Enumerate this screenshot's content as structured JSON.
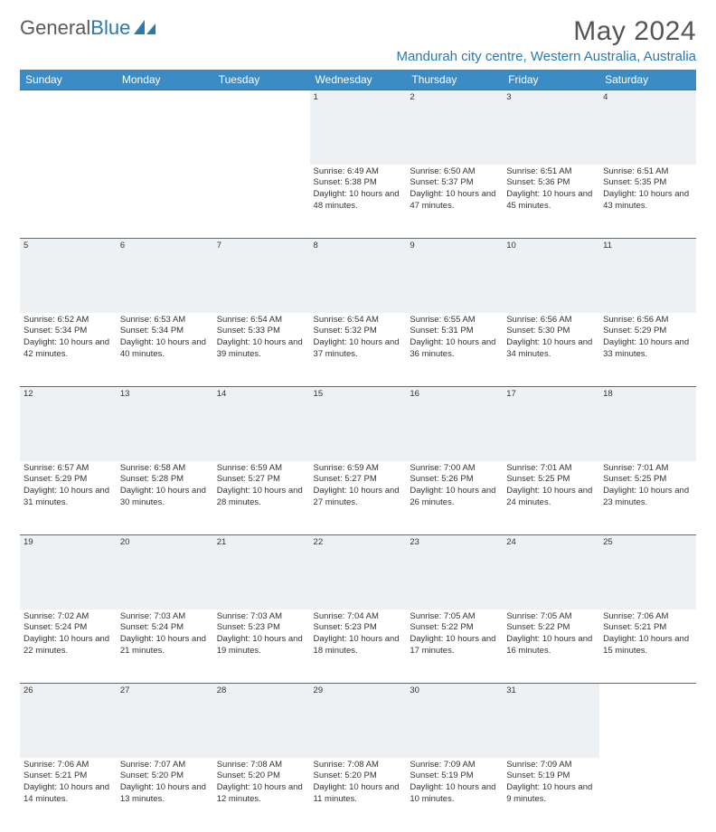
{
  "brand": {
    "part1": "General",
    "part2": "Blue"
  },
  "title": "May 2024",
  "location": "Mandurah city centre, Western Australia, Australia",
  "colors": {
    "header_bg": "#3b8bc4",
    "accent": "#2a7ab0",
    "daynum_bg": "#eef1f4",
    "text": "#333333",
    "logo_gray": "#5a5a5a"
  },
  "weekdays": [
    "Sunday",
    "Monday",
    "Tuesday",
    "Wednesday",
    "Thursday",
    "Friday",
    "Saturday"
  ],
  "weeks": [
    {
      "nums": [
        "",
        "",
        "",
        "1",
        "2",
        "3",
        "4"
      ],
      "cells": [
        "",
        "",
        "",
        "Sunrise: 6:49 AM\nSunset: 5:38 PM\nDaylight: 10 hours and 48 minutes.",
        "Sunrise: 6:50 AM\nSunset: 5:37 PM\nDaylight: 10 hours and 47 minutes.",
        "Sunrise: 6:51 AM\nSunset: 5:36 PM\nDaylight: 10 hours and 45 minutes.",
        "Sunrise: 6:51 AM\nSunset: 5:35 PM\nDaylight: 10 hours and 43 minutes."
      ]
    },
    {
      "nums": [
        "5",
        "6",
        "7",
        "8",
        "9",
        "10",
        "11"
      ],
      "cells": [
        "Sunrise: 6:52 AM\nSunset: 5:34 PM\nDaylight: 10 hours and 42 minutes.",
        "Sunrise: 6:53 AM\nSunset: 5:34 PM\nDaylight: 10 hours and 40 minutes.",
        "Sunrise: 6:54 AM\nSunset: 5:33 PM\nDaylight: 10 hours and 39 minutes.",
        "Sunrise: 6:54 AM\nSunset: 5:32 PM\nDaylight: 10 hours and 37 minutes.",
        "Sunrise: 6:55 AM\nSunset: 5:31 PM\nDaylight: 10 hours and 36 minutes.",
        "Sunrise: 6:56 AM\nSunset: 5:30 PM\nDaylight: 10 hours and 34 minutes.",
        "Sunrise: 6:56 AM\nSunset: 5:29 PM\nDaylight: 10 hours and 33 minutes."
      ]
    },
    {
      "nums": [
        "12",
        "13",
        "14",
        "15",
        "16",
        "17",
        "18"
      ],
      "cells": [
        "Sunrise: 6:57 AM\nSunset: 5:29 PM\nDaylight: 10 hours and 31 minutes.",
        "Sunrise: 6:58 AM\nSunset: 5:28 PM\nDaylight: 10 hours and 30 minutes.",
        "Sunrise: 6:59 AM\nSunset: 5:27 PM\nDaylight: 10 hours and 28 minutes.",
        "Sunrise: 6:59 AM\nSunset: 5:27 PM\nDaylight: 10 hours and 27 minutes.",
        "Sunrise: 7:00 AM\nSunset: 5:26 PM\nDaylight: 10 hours and 26 minutes.",
        "Sunrise: 7:01 AM\nSunset: 5:25 PM\nDaylight: 10 hours and 24 minutes.",
        "Sunrise: 7:01 AM\nSunset: 5:25 PM\nDaylight: 10 hours and 23 minutes."
      ]
    },
    {
      "nums": [
        "19",
        "20",
        "21",
        "22",
        "23",
        "24",
        "25"
      ],
      "cells": [
        "Sunrise: 7:02 AM\nSunset: 5:24 PM\nDaylight: 10 hours and 22 minutes.",
        "Sunrise: 7:03 AM\nSunset: 5:24 PM\nDaylight: 10 hours and 21 minutes.",
        "Sunrise: 7:03 AM\nSunset: 5:23 PM\nDaylight: 10 hours and 19 minutes.",
        "Sunrise: 7:04 AM\nSunset: 5:23 PM\nDaylight: 10 hours and 18 minutes.",
        "Sunrise: 7:05 AM\nSunset: 5:22 PM\nDaylight: 10 hours and 17 minutes.",
        "Sunrise: 7:05 AM\nSunset: 5:22 PM\nDaylight: 10 hours and 16 minutes.",
        "Sunrise: 7:06 AM\nSunset: 5:21 PM\nDaylight: 10 hours and 15 minutes."
      ]
    },
    {
      "nums": [
        "26",
        "27",
        "28",
        "29",
        "30",
        "31",
        ""
      ],
      "cells": [
        "Sunrise: 7:06 AM\nSunset: 5:21 PM\nDaylight: 10 hours and 14 minutes.",
        "Sunrise: 7:07 AM\nSunset: 5:20 PM\nDaylight: 10 hours and 13 minutes.",
        "Sunrise: 7:08 AM\nSunset: 5:20 PM\nDaylight: 10 hours and 12 minutes.",
        "Sunrise: 7:08 AM\nSunset: 5:20 PM\nDaylight: 10 hours and 11 minutes.",
        "Sunrise: 7:09 AM\nSunset: 5:19 PM\nDaylight: 10 hours and 10 minutes.",
        "Sunrise: 7:09 AM\nSunset: 5:19 PM\nDaylight: 10 hours and 9 minutes.",
        ""
      ]
    }
  ]
}
